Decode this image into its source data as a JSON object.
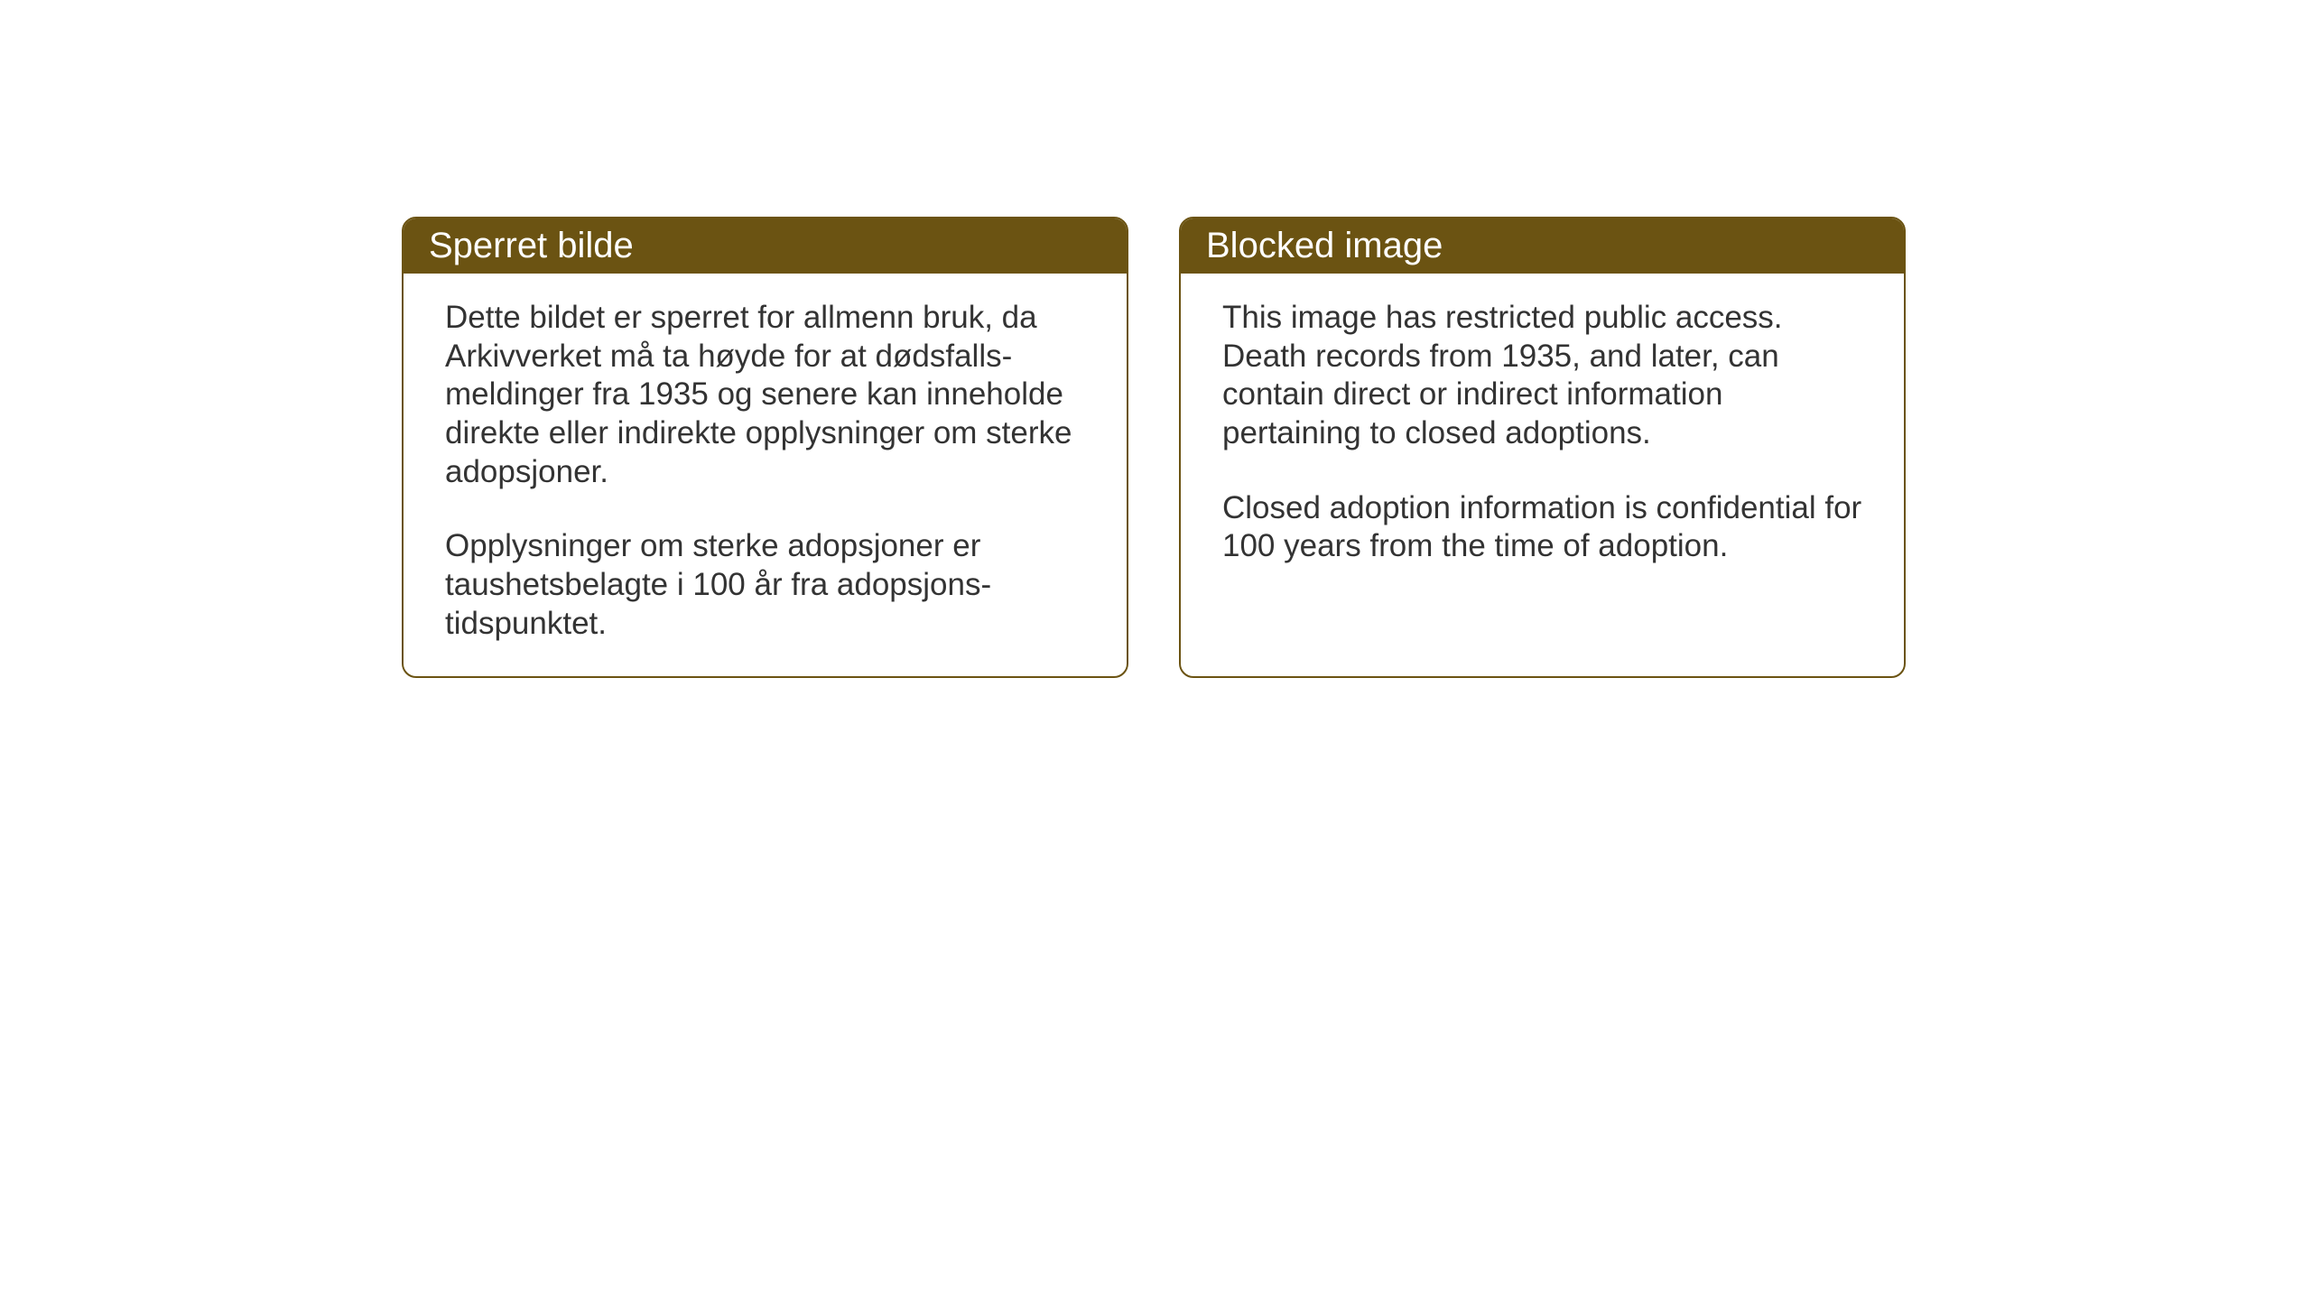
{
  "cards": [
    {
      "title": "Sperret bilde",
      "paragraph1": "Dette bildet er sperret for allmenn bruk, da Arkivverket må ta høyde for at dødsfalls-meldinger fra 1935 og senere kan inneholde direkte eller indirekte opplysninger om sterke adopsjoner.",
      "paragraph2": "Opplysninger om sterke adopsjoner er taushetsbelagte i 100 år fra adopsjons-tidspunktet."
    },
    {
      "title": "Blocked image",
      "paragraph1": "This image has restricted public access. Death records from 1935, and later, can contain direct or indirect information pertaining to closed adoptions.",
      "paragraph2": "Closed adoption information is confidential for 100 years from the time of adoption."
    }
  ],
  "styling": {
    "header_background": "#6b5312",
    "header_text_color": "#ffffff",
    "border_color": "#6b5312",
    "body_text_color": "#333333",
    "card_background": "#ffffff",
    "page_background": "#ffffff",
    "title_fontsize": 40,
    "body_fontsize": 35,
    "border_radius": 16,
    "border_width": 2
  }
}
